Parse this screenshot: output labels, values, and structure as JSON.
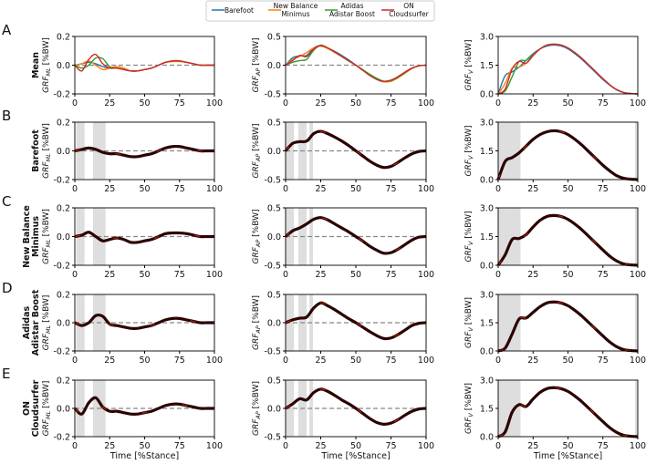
{
  "legend": [
    {
      "name": "Barefoot",
      "color": "#1f77b4"
    },
    {
      "name": "New Balance\nMinimus",
      "color": "#ff7f0e"
    },
    {
      "name": "Adidas\nAdistar Boost",
      "color": "#2ca02c"
    },
    {
      "name": "ON\nCloudsurfer",
      "color": "#d62728"
    }
  ],
  "chart_data": {
    "type": "line",
    "x": [
      0,
      5,
      10,
      15,
      20,
      25,
      30,
      35,
      40,
      45,
      50,
      55,
      60,
      65,
      70,
      75,
      80,
      85,
      90,
      95,
      100
    ],
    "xlabel": "Time [%Stance]",
    "xticks": [
      "0",
      "25",
      "50",
      "75",
      "100"
    ],
    "xlim": [
      0,
      100
    ],
    "columns": [
      {
        "key": "ML",
        "ylabel": "GRF",
        "sub": "ML",
        "unit": " [%BW]",
        "ylim": [
          -0.2,
          0.2
        ],
        "yticks": [
          "-0.2",
          "0.0",
          "0.2"
        ],
        "zero_line": true
      },
      {
        "key": "AP",
        "ylabel": "GRF",
        "sub": "AP",
        "unit": " [%BW]",
        "ylim": [
          -0.5,
          0.5
        ],
        "yticks": [
          "-0.5",
          "0.0",
          "0.5"
        ],
        "zero_line": true
      },
      {
        "key": "V",
        "ylabel": "GRF",
        "sub": "V",
        "unit": " [%BW]",
        "ylim": [
          0,
          3
        ],
        "yticks": [
          "0.0",
          "1.5",
          "3.0"
        ],
        "zero_line": false
      }
    ],
    "series": {
      "Barefoot": {
        "ML": [
          0,
          0.01,
          0.02,
          0.01,
          -0.01,
          -0.02,
          -0.02,
          -0.03,
          -0.04,
          -0.04,
          -0.03,
          -0.02,
          0,
          0.02,
          0.03,
          0.03,
          0.02,
          0.01,
          0,
          0,
          0
        ],
        "AP": [
          0,
          0.13,
          0.16,
          0.17,
          0.3,
          0.34,
          0.3,
          0.24,
          0.17,
          0.09,
          0,
          -0.09,
          -0.18,
          -0.25,
          -0.29,
          -0.27,
          -0.2,
          -0.12,
          -0.05,
          -0.01,
          0
        ],
        "V": [
          0,
          0.95,
          1.15,
          1.4,
          1.75,
          2.1,
          2.35,
          2.5,
          2.55,
          2.5,
          2.35,
          2.1,
          1.8,
          1.45,
          1.1,
          0.75,
          0.45,
          0.2,
          0.07,
          0.02,
          0
        ]
      },
      "New Balance Minimus": {
        "ML": [
          0,
          0.01,
          0.03,
          0,
          -0.03,
          -0.02,
          -0.01,
          -0.02,
          -0.04,
          -0.04,
          -0.03,
          -0.02,
          0,
          0.02,
          0.025,
          0.025,
          0.02,
          0.01,
          0,
          0,
          0
        ],
        "AP": [
          0,
          0.1,
          0.15,
          0.22,
          0.3,
          0.33,
          0.29,
          0.22,
          0.15,
          0.08,
          0,
          -0.08,
          -0.17,
          -0.24,
          -0.29,
          -0.28,
          -0.22,
          -0.14,
          -0.06,
          -0.01,
          0
        ],
        "V": [
          0,
          0.55,
          1.35,
          1.4,
          1.6,
          2.0,
          2.35,
          2.55,
          2.6,
          2.55,
          2.4,
          2.15,
          1.85,
          1.5,
          1.15,
          0.8,
          0.47,
          0.22,
          0.07,
          0.02,
          0
        ]
      },
      "Adidas Adistar Boost": {
        "ML": [
          0,
          -0.02,
          0.0,
          0.05,
          0.045,
          -0.01,
          -0.02,
          -0.03,
          -0.04,
          -0.04,
          -0.03,
          -0.02,
          0,
          0.02,
          0.03,
          0.03,
          0.02,
          0.01,
          0,
          0,
          0
        ],
        "AP": [
          0,
          0.05,
          0.08,
          0.1,
          0.26,
          0.35,
          0.3,
          0.23,
          0.15,
          0.07,
          0,
          -0.08,
          -0.16,
          -0.23,
          -0.28,
          -0.27,
          -0.21,
          -0.13,
          -0.05,
          -0.01,
          0
        ],
        "V": [
          0,
          0.15,
          0.9,
          1.7,
          1.75,
          2.05,
          2.35,
          2.55,
          2.6,
          2.55,
          2.4,
          2.15,
          1.85,
          1.5,
          1.15,
          0.8,
          0.47,
          0.22,
          0.07,
          0.02,
          0
        ]
      },
      "ON Cloudsurfer": {
        "ML": [
          0,
          -0.04,
          0.04,
          0.075,
          0.01,
          -0.02,
          -0.02,
          -0.03,
          -0.04,
          -0.04,
          -0.03,
          -0.02,
          0,
          0.02,
          0.03,
          0.03,
          0.02,
          0.01,
          0,
          0,
          0
        ],
        "AP": [
          0,
          0.08,
          0.17,
          0.15,
          0.28,
          0.34,
          0.3,
          0.23,
          0.15,
          0.08,
          0,
          -0.09,
          -0.18,
          -0.25,
          -0.28,
          -0.26,
          -0.2,
          -0.12,
          -0.05,
          -0.01,
          0
        ],
        "V": [
          0,
          0.25,
          1.3,
          1.7,
          1.6,
          2.0,
          2.35,
          2.55,
          2.6,
          2.55,
          2.4,
          2.15,
          1.85,
          1.5,
          1.15,
          0.8,
          0.47,
          0.22,
          0.07,
          0.02,
          0
        ]
      }
    },
    "shaded_regions": {
      "Barefoot": {
        "ML": [
          [
            1,
            7
          ],
          [
            13,
            22
          ]
        ],
        "AP": [
          [
            0,
            6
          ],
          [
            9,
            15
          ],
          [
            17,
            19.5
          ]
        ],
        "V": [
          [
            0,
            16
          ],
          [
            98,
            100
          ]
        ]
      },
      "New Balance Minimus": {
        "ML": [
          [
            1,
            7
          ],
          [
            13,
            22
          ]
        ],
        "AP": [
          [
            0,
            6
          ],
          [
            9,
            15
          ],
          [
            17,
            19.5
          ]
        ],
        "V": [
          [
            0,
            16
          ],
          [
            98,
            100
          ]
        ]
      },
      "Adidas Adistar Boost": {
        "ML": [
          [
            1,
            7
          ],
          [
            13,
            22
          ]
        ],
        "AP": [
          [
            0,
            6
          ],
          [
            9,
            15
          ],
          [
            17,
            19.5
          ]
        ],
        "V": [
          [
            0,
            16
          ],
          [
            98,
            100
          ]
        ]
      },
      "ON Cloudsurfer": {
        "ML": [
          [
            1,
            7
          ],
          [
            13,
            22
          ]
        ],
        "AP": [
          [
            0,
            6
          ],
          [
            9,
            15
          ],
          [
            17,
            19.5
          ]
        ],
        "V": [
          [
            0,
            16
          ],
          [
            98,
            100
          ]
        ]
      }
    },
    "rows": [
      {
        "letter": "A",
        "label": [
          "Mean"
        ],
        "kind": "mean"
      },
      {
        "letter": "B",
        "label": [
          "Barefoot"
        ],
        "shoe": "Barefoot"
      },
      {
        "letter": "C",
        "label": [
          "New Balance",
          "Minimus"
        ],
        "shoe": "New Balance Minimus"
      },
      {
        "letter": "D",
        "label": [
          "Adidas",
          "Adistar Boost"
        ],
        "shoe": "Adidas Adistar Boost"
      },
      {
        "letter": "E",
        "label": [
          "ON",
          "Cloudsurfer"
        ],
        "shoe": "ON Cloudsurfer"
      }
    ],
    "line_color_single": "#2b0303",
    "highlight_color": "#c8290c"
  }
}
